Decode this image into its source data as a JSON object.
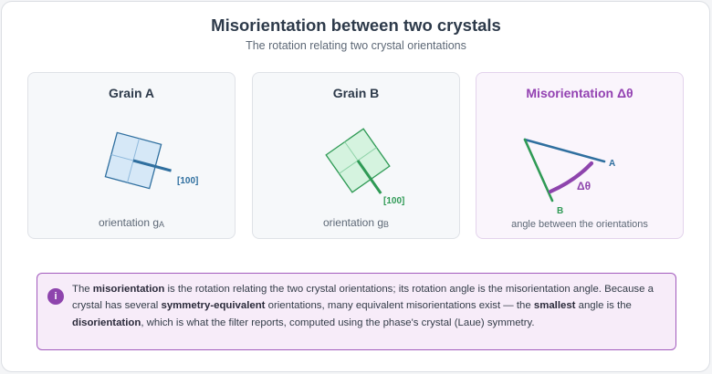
{
  "header": {
    "title": "Misorientation between two crystals",
    "subtitle": "The rotation relating two crystal orientations"
  },
  "cards": {
    "grain_a": {
      "title": "Grain A",
      "axis_label": "[100]",
      "caption_prefix": "orientation g",
      "caption_subscript": "A"
    },
    "grain_b": {
      "title": "Grain B",
      "axis_label": "[100]",
      "caption_prefix": "orientation g",
      "caption_subscript": "B"
    },
    "misorientation": {
      "title": "Misorientation Δθ",
      "label_a": "A",
      "label_b": "B",
      "angle_label": "Δθ",
      "caption": "angle between the orientations"
    }
  },
  "note": {
    "icon": "info-icon",
    "segments": [
      {
        "text": "The ",
        "bold": false
      },
      {
        "text": "misorientation",
        "bold": true
      },
      {
        "text": " is the rotation relating the two crystal orientations; its rotation angle is the misorientation angle. Because a crystal has several ",
        "bold": false
      },
      {
        "text": "symmetry-equivalent",
        "bold": true
      },
      {
        "text": " orientations, many equivalent misorientations exist — the ",
        "bold": false
      },
      {
        "text": "smallest",
        "bold": true
      },
      {
        "text": " angle is the ",
        "bold": false
      },
      {
        "text": "disorientation",
        "bold": true
      },
      {
        "text": ", which is what the filter reports, computed using the phase's crystal (Laue) symmetry.",
        "bold": false
      }
    ]
  },
  "colors": {
    "grain_a": "#2f6f9f",
    "grain_a_fill": "#d6e8f7",
    "grain_b": "#2f9a55",
    "grain_b_fill": "#d5f3df",
    "accent": "#8e44ad"
  }
}
